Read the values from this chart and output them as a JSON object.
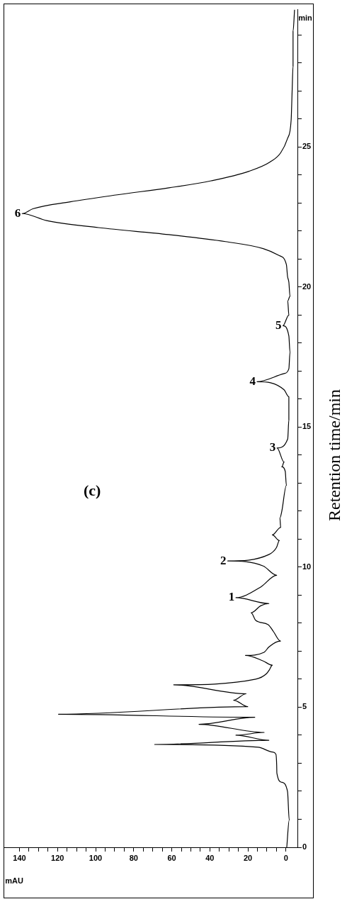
{
  "chart_data": {
    "type": "line",
    "xlabel": "mAU",
    "ylabel": "min",
    "x": [
      -0.4,
      -1.7,
      -0.8,
      2.2,
      4.8,
      4.9,
      5.3,
      7.2,
      14.6,
      69,
      9.0,
      26.3,
      11.5,
      45.7,
      16.4,
      119.5,
      20.1,
      27.5,
      21.0,
      59,
      15.9,
      10.2,
      8.6,
      7.2,
      12,
      21.3,
      11.5,
      9,
      2.9,
      6.6,
      9.4,
      15.9,
      18.3,
      13.3,
      9.0,
      26.3,
      13.3,
      4.9,
      12,
      30.6,
      9,
      5,
      3.5,
      7.2,
      2.8,
      3.2,
      2.2,
      -0.2,
      0.4,
      2.2,
      1.0,
      4.7,
      -0.9,
      -1.5,
      -1.5,
      1.0,
      15.2,
      1.0,
      -1.5,
      -2.1,
      -1.5,
      1.6,
      -1.5,
      -0.9,
      -2.1,
      -1.5,
      -0.8,
      -0.2,
      3.5,
      12,
      31.8,
      61.5,
      98.5,
      125.7,
      138.6,
      133,
      113.3,
      88.6,
      61.5,
      39.3,
      19.5,
      8.4,
      2.8,
      -0.8,
      -2.7,
      -3.2,
      -3.7,
      -3.7,
      -4.5
    ],
    "values": [
      0,
      0.98,
      1.99,
      2.32,
      2.65,
      2.94,
      3.32,
      3.4,
      3.57,
      3.67,
      3.82,
      4.0,
      4.1,
      4.39,
      4.64,
      4.75,
      5.02,
      5.25,
      5.48,
      5.8,
      6.0,
      6.2,
      6.35,
      6.5,
      6.65,
      6.85,
      6.96,
      7.15,
      7.36,
      7.7,
      7.95,
      8.1,
      8.37,
      8.62,
      8.7,
      8.91,
      9.29,
      9.71,
      10.04,
      10.22,
      10.45,
      10.7,
      10.95,
      11.15,
      11.42,
      11.75,
      12.0,
      12.92,
      13.42,
      13.58,
      13.75,
      14.25,
      14.58,
      15.25,
      16.08,
      16.33,
      16.62,
      16.91,
      17.08,
      17.67,
      18.25,
      18.62,
      19.0,
      19.5,
      19.67,
      20.17,
      20.38,
      20.8,
      21.12,
      21.37,
      21.62,
      21.87,
      22.12,
      22.37,
      22.62,
      22.79,
      23.04,
      23.29,
      23.54,
      23.79,
      24.13,
      24.46,
      24.79,
      25.3,
      25.96,
      26.96,
      27.88,
      29.13,
      29.9
    ],
    "color": "#000000",
    "marker": "none",
    "line_style": "solid",
    "grid": false,
    "legend": false,
    "xlim": [
      148,
      -6
    ],
    "ylim": [
      0,
      29.9
    ],
    "xticks": [
      0,
      {
        "value": 5,
        "label": null
      },
      {
        "value": 10,
        "label": null
      },
      {
        "value": 15,
        "label": null
      },
      20,
      {
        "value": 25,
        "label": null
      },
      {
        "value": 30,
        "label": null
      },
      {
        "value": 35,
        "label": null
      },
      40,
      {
        "value": 45,
        "label": null
      },
      {
        "value": 50,
        "label": null
      },
      {
        "value": 55,
        "label": null
      },
      60,
      {
        "value": 65,
        "label": null
      },
      {
        "value": 70,
        "label": null
      },
      {
        "value": 75,
        "label": null
      },
      80,
      {
        "value": 85,
        "label": null
      },
      {
        "value": 90,
        "label": null
      },
      {
        "value": 95,
        "label": null
      },
      100,
      {
        "value": 105,
        "label": null
      },
      {
        "value": 110,
        "label": null
      },
      {
        "value": 115,
        "label": null
      },
      120,
      {
        "value": 125,
        "label": null
      },
      {
        "value": 130,
        "label": null
      },
      {
        "value": 135,
        "label": null
      },
      140
    ],
    "yticks": [
      0,
      {
        "value": 1,
        "label": null
      },
      {
        "value": 2,
        "label": null
      },
      {
        "value": 3,
        "label": null
      },
      {
        "value": 4,
        "label": null
      },
      5,
      {
        "value": 6,
        "label": null
      },
      {
        "value": 7,
        "label": null
      },
      {
        "value": 8,
        "label": null
      },
      {
        "value": 9,
        "label": null
      },
      10,
      {
        "value": 11,
        "label": null
      },
      {
        "value": 12,
        "label": null
      },
      {
        "value": 13,
        "label": null
      },
      {
        "value": 14,
        "label": null
      },
      15,
      {
        "value": 16,
        "label": null
      },
      {
        "value": 17,
        "label": null
      },
      {
        "value": 18,
        "label": null
      },
      {
        "value": 19,
        "label": null
      },
      20,
      {
        "value": 21,
        "label": null
      },
      {
        "value": 22,
        "label": null
      },
      {
        "value": 23,
        "label": null
      },
      {
        "value": 24,
        "label": null
      },
      25,
      {
        "value": 26,
        "label": null
      },
      {
        "value": 27,
        "label": null
      },
      {
        "value": 28,
        "label": null
      },
      {
        "value": 29,
        "label": null
      }
    ],
    "annotations": [
      "(c)",
      "Retention time/min",
      {
        "text": "1",
        "x": 26.3,
        "y": 8.91
      },
      {
        "text": "2",
        "x": 30.6,
        "y": 10.22
      },
      {
        "text": "3",
        "x": 4.7,
        "y": 14.25
      },
      {
        "text": "4",
        "x": 15.2,
        "y": 16.62
      },
      {
        "text": "5",
        "x": 1.6,
        "y": 18.62
      },
      {
        "text": "6",
        "x": 138.6,
        "y": 22.62
      }
    ]
  }
}
